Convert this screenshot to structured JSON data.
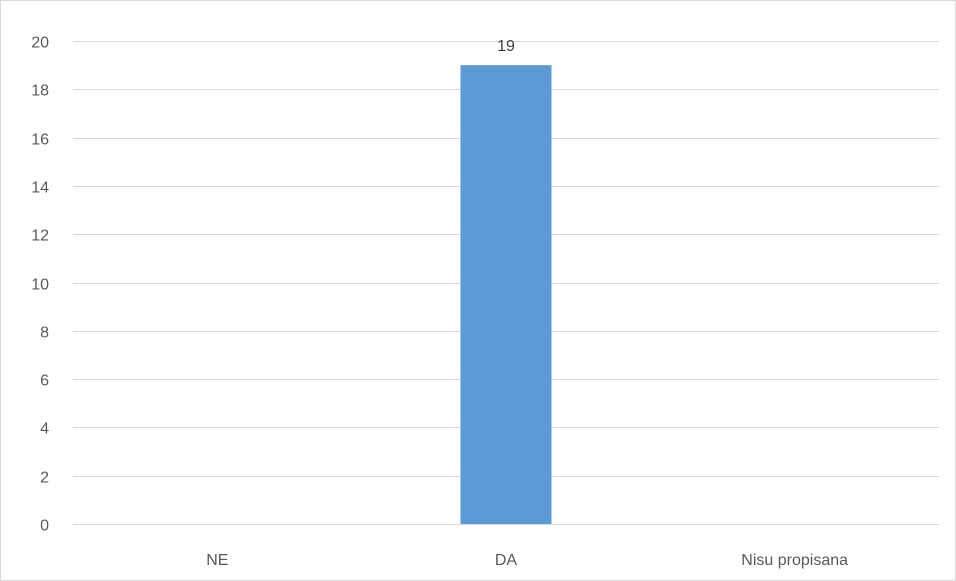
{
  "chart_data": {
    "type": "bar",
    "categories": [
      "NE",
      "DA",
      "Nisu propisana"
    ],
    "values": [
      0,
      19,
      0
    ],
    "data_labels": [
      "",
      "19",
      ""
    ],
    "ylim": [
      0,
      20
    ],
    "yticks": [
      0,
      2,
      4,
      6,
      8,
      10,
      12,
      14,
      16,
      18,
      20
    ],
    "ytick_labels": [
      "0",
      "2",
      "4",
      "6",
      "8",
      "10",
      "12",
      "14",
      "16",
      "18",
      "20"
    ],
    "grid": true,
    "legend": "none",
    "title": "",
    "xlabel": "",
    "ylabel": "",
    "colors": {
      "bar": "#5b9bd5",
      "gridline": "#d9d9d9",
      "tick_text": "#595959",
      "border": "#d9d9d9"
    }
  }
}
